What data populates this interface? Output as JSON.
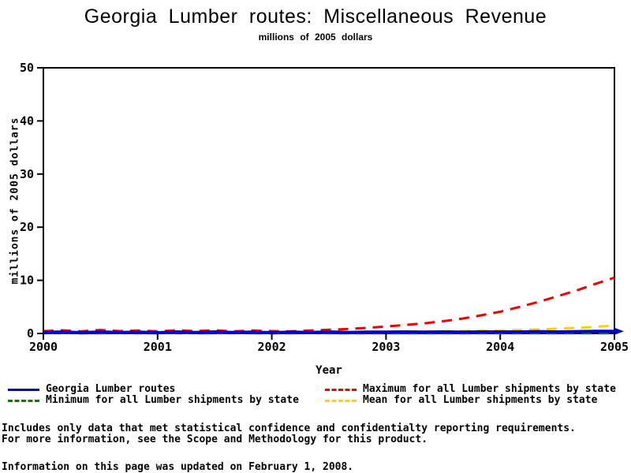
{
  "title": "Georgia Lumber routes: Miscellaneous Revenue",
  "subtitle": "millions of 2005 dollars",
  "x_axis_title": "Year",
  "y_axis_title": "millions of 2005 dollars",
  "footnotes": {
    "line1": "Includes only data that met statistical confidence and confidentialty reporting requirements.",
    "line2": "For more information, see the Scope and Methodology for this product.",
    "line3": "Information on this page was updated on February 1, 2008."
  },
  "legend": {
    "items": [
      {
        "label": "Georgia Lumber routes",
        "color": "#0000d2",
        "dash": "solid"
      },
      {
        "label": "Minimum for all Lumber shipments by state",
        "color": "#087d08",
        "dash": "dashed"
      },
      {
        "label": "Maximum for all Lumber shipments by state",
        "color": "#ee0000",
        "dash": "dashed"
      },
      {
        "label": "Mean for all Lumber shipments by state",
        "color": "#ffd200",
        "dash": "dashed"
      }
    ]
  },
  "chart_data": {
    "type": "line",
    "title": "Georgia Lumber routes: Miscellaneous Revenue",
    "subtitle": "millions of 2005 dollars",
    "xlabel": "Year",
    "ylabel": "millions of 2005 dollars",
    "xlim": [
      2000,
      2005
    ],
    "ylim": [
      0,
      50
    ],
    "x_ticks": [
      2000,
      2001,
      2002,
      2003,
      2004,
      2005
    ],
    "y_ticks": [
      0,
      10,
      20,
      30,
      40,
      50
    ],
    "grid": false,
    "legend_position": "bottom",
    "x": [
      2000,
      2000.17,
      2000.33,
      2000.5,
      2000.67,
      2000.83,
      2001,
      2001.17,
      2001.33,
      2001.5,
      2001.67,
      2001.83,
      2002,
      2002.17,
      2002.33,
      2002.5,
      2002.67,
      2002.83,
      2003,
      2003.17,
      2003.33,
      2003.5,
      2003.67,
      2003.83,
      2004,
      2004.17,
      2004.33,
      2004.5,
      2004.67,
      2004.83,
      2005
    ],
    "series": [
      {
        "name": "Maximum for all Lumber shipments by state",
        "color": "#ee0000",
        "dash": "dashed",
        "values": [
          0.45,
          0.6,
          0.4,
          0.65,
          0.45,
          0.55,
          0.4,
          0.6,
          0.45,
          0.6,
          0.4,
          0.55,
          0.45,
          0.4,
          0.55,
          0.7,
          0.85,
          1.05,
          1.3,
          1.6,
          1.9,
          2.3,
          2.8,
          3.4,
          4.1,
          5.0,
          5.9,
          7.0,
          8.1,
          9.3,
          10.5
        ]
      },
      {
        "name": "Mean for all Lumber shipments by state",
        "color": "#ffd200",
        "dash": "dashed",
        "values": [
          0.15,
          0.2,
          0.15,
          0.2,
          0.15,
          0.2,
          0.15,
          0.2,
          0.15,
          0.2,
          0.15,
          0.2,
          0.2,
          0.2,
          0.25,
          0.25,
          0.3,
          0.3,
          0.3,
          0.35,
          0.35,
          0.4,
          0.45,
          0.5,
          0.55,
          0.65,
          0.75,
          0.9,
          1.05,
          1.25,
          1.5
        ]
      },
      {
        "name": "Minimum for all Lumber shipments by state",
        "color": "#087d08",
        "dash": "dashed",
        "values": [
          0.05,
          0.1,
          0.05,
          0.05,
          0.1,
          0.05,
          0.05,
          0.1,
          0.05,
          0.05,
          0.1,
          0.05,
          0.05,
          0.05,
          0.1,
          0.05,
          0.05,
          0.05,
          0.05,
          0.05,
          0.05,
          0.05,
          0.05,
          0.05,
          0.05,
          0.05,
          0.05,
          0.05,
          0.05,
          0.05,
          0.05
        ]
      },
      {
        "name": "Georgia Lumber routes",
        "color": "#0000d2",
        "dash": "solid",
        "arrow_end": true,
        "values": [
          0.2,
          0.3,
          0.15,
          0.3,
          0.2,
          0.25,
          0.15,
          0.3,
          0.2,
          0.3,
          0.2,
          0.25,
          0.15,
          0.25,
          0.2,
          0.3,
          0.2,
          0.25,
          0.25,
          0.3,
          0.25,
          0.3,
          0.25,
          0.3,
          0.3,
          0.3,
          0.35,
          0.3,
          0.35,
          0.4,
          0.4
        ]
      }
    ]
  }
}
